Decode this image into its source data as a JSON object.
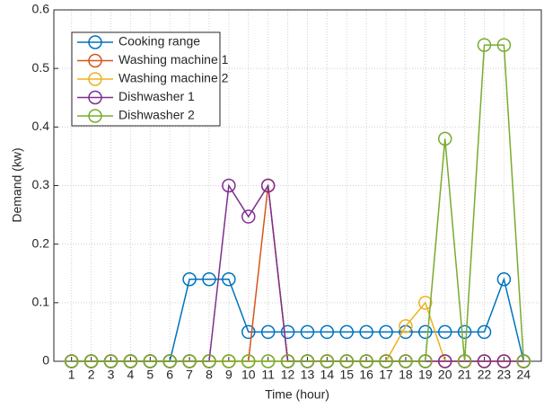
{
  "chart_data": {
    "type": "line",
    "x_label": "Time (hour)",
    "y_label": "Demand (kw)",
    "x": [
      1,
      2,
      3,
      4,
      5,
      6,
      7,
      8,
      9,
      10,
      11,
      12,
      13,
      14,
      15,
      16,
      17,
      18,
      19,
      20,
      21,
      22,
      23,
      24
    ],
    "xlim": [
      0.1,
      24.9
    ],
    "xticks": [
      1,
      2,
      3,
      4,
      5,
      6,
      7,
      8,
      9,
      10,
      11,
      12,
      13,
      14,
      15,
      16,
      17,
      18,
      19,
      20,
      21,
      22,
      23,
      24
    ],
    "ylim": [
      0,
      0.6
    ],
    "yticks": [
      0,
      0.1,
      0.2,
      0.3,
      0.4,
      0.5,
      0.6
    ],
    "grid": true,
    "legend": "upper-left",
    "series": [
      {
        "name": "Cooking range",
        "color": "#0072BD",
        "values": [
          0,
          0,
          0,
          0,
          0,
          0,
          0.14,
          0.14,
          0.14,
          0.05,
          0.05,
          0.05,
          0.05,
          0.05,
          0.05,
          0.05,
          0.05,
          0.05,
          0.05,
          0.05,
          0.05,
          0.05,
          0.14,
          0
        ]
      },
      {
        "name": "Washing machine 1",
        "color": "#D95319",
        "values": [
          0,
          0,
          0,
          0,
          0,
          0,
          0,
          0,
          0,
          0,
          0.3,
          0,
          0,
          0,
          0,
          0,
          0,
          0,
          0,
          0,
          0,
          0,
          0,
          0
        ]
      },
      {
        "name": "Washing machine 2",
        "color": "#EDB120",
        "values": [
          0,
          0,
          0,
          0,
          0,
          0,
          0,
          0,
          0,
          0,
          0,
          0,
          0,
          0,
          0,
          0,
          0,
          0.06,
          0.1,
          0,
          0,
          0,
          0,
          0
        ]
      },
      {
        "name": "Dishwasher 1",
        "color": "#7E2F8E",
        "values": [
          0,
          0,
          0,
          0,
          0,
          0,
          0,
          0,
          0.3,
          0.247,
          0.3,
          0,
          0,
          0,
          0,
          0,
          0,
          0,
          0,
          0,
          0,
          0,
          0,
          0
        ]
      },
      {
        "name": "Dishwasher 2",
        "color": "#77AC30",
        "values": [
          0,
          0,
          0,
          0,
          0,
          0,
          0,
          0,
          0,
          0,
          0,
          0,
          0,
          0,
          0,
          0,
          0,
          0,
          0,
          0.38,
          0,
          0.54,
          0.54,
          0
        ]
      }
    ]
  }
}
